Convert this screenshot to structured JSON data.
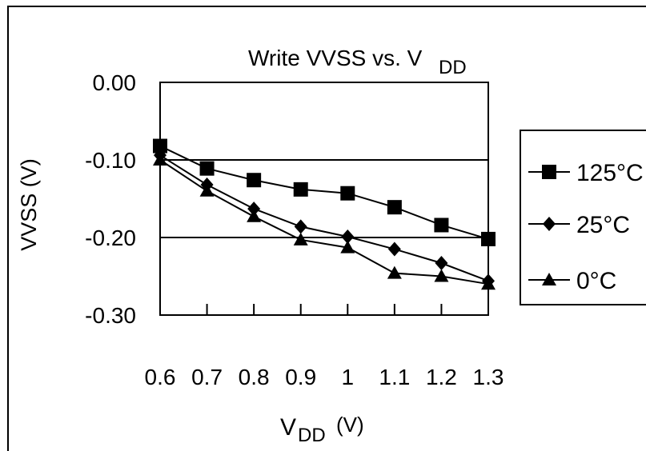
{
  "chart_data": {
    "type": "line",
    "title": {
      "main": "Write VVSS vs. V",
      "sub": "DD"
    },
    "xlabel": {
      "main": "V",
      "sub": "DD",
      "unit": "(V)"
    },
    "ylabel": "VVSS (V)",
    "categories": [
      "0.6",
      "0.7",
      "0.8",
      "0.9",
      "1",
      "1.1",
      "1.2",
      "1.3"
    ],
    "yticks": [
      "0.00",
      "-0.10",
      "-0.20",
      "-0.30"
    ],
    "ylim": [
      -0.3,
      0.0
    ],
    "grid": "horizontal at -0.10 and -0.20",
    "legend_position": "right",
    "series": [
      {
        "name": "125°C",
        "marker": "square",
        "values": [
          -0.082,
          -0.111,
          -0.126,
          -0.138,
          -0.143,
          -0.161,
          -0.184,
          -0.202
        ]
      },
      {
        "name": "25°C",
        "marker": "diamond",
        "values": [
          -0.094,
          -0.132,
          -0.163,
          -0.186,
          -0.199,
          -0.215,
          -0.233,
          -0.256
        ]
      },
      {
        "name": "0°C",
        "marker": "triangle",
        "values": [
          -0.1,
          -0.14,
          -0.173,
          -0.203,
          -0.213,
          -0.246,
          -0.25,
          -0.26
        ]
      }
    ]
  }
}
